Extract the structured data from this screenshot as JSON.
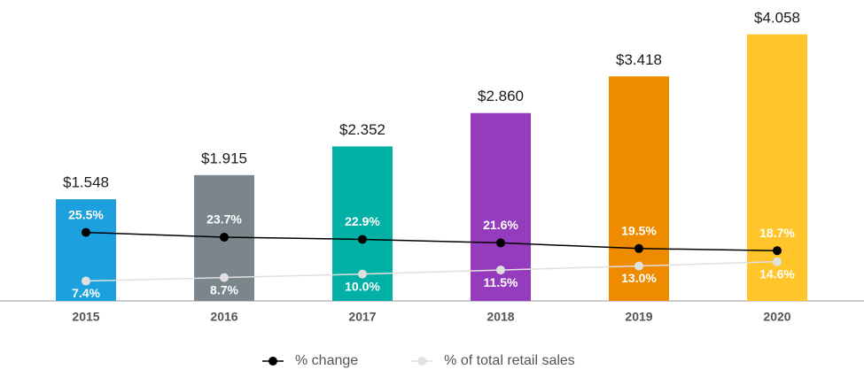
{
  "chart_data": {
    "type": "bar",
    "categories": [
      "2015",
      "2016",
      "2017",
      "2018",
      "2019",
      "2020"
    ],
    "ylim": [
      0,
      4.5
    ],
    "y2lim": [
      0,
      110
    ],
    "series": [
      {
        "type": "bar",
        "values": [
          1.548,
          1.915,
          2.352,
          2.86,
          3.418,
          4.058
        ],
        "value_labels": [
          "$1.548",
          "$1.915",
          "$2.352",
          "$2.860",
          "$3.418",
          "$4.058"
        ],
        "colors": [
          "#1ca0de",
          "#7a868c",
          "#02b0a6",
          "#953cbe",
          "#ee8b00",
          "#ffc52a"
        ]
      },
      {
        "type": "line",
        "name": "% change",
        "color": "#000000",
        "axis": "y2",
        "label_position": "above",
        "values": [
          25.5,
          23.7,
          22.9,
          21.6,
          19.5,
          18.7
        ],
        "value_labels": [
          "25.5%",
          "23.7%",
          "22.9%",
          "21.6%",
          "19.5%",
          "18.7%"
        ]
      },
      {
        "type": "line",
        "name": "% of total retail sales",
        "color": "#e0e0e0",
        "axis": "y2",
        "label_position": "below",
        "values": [
          7.4,
          8.7,
          10.0,
          11.5,
          13.0,
          14.6
        ],
        "value_labels": [
          "7.4%",
          "8.7%",
          "10.0%",
          "11.5%",
          "13.0%",
          "14.6%"
        ]
      }
    ]
  }
}
